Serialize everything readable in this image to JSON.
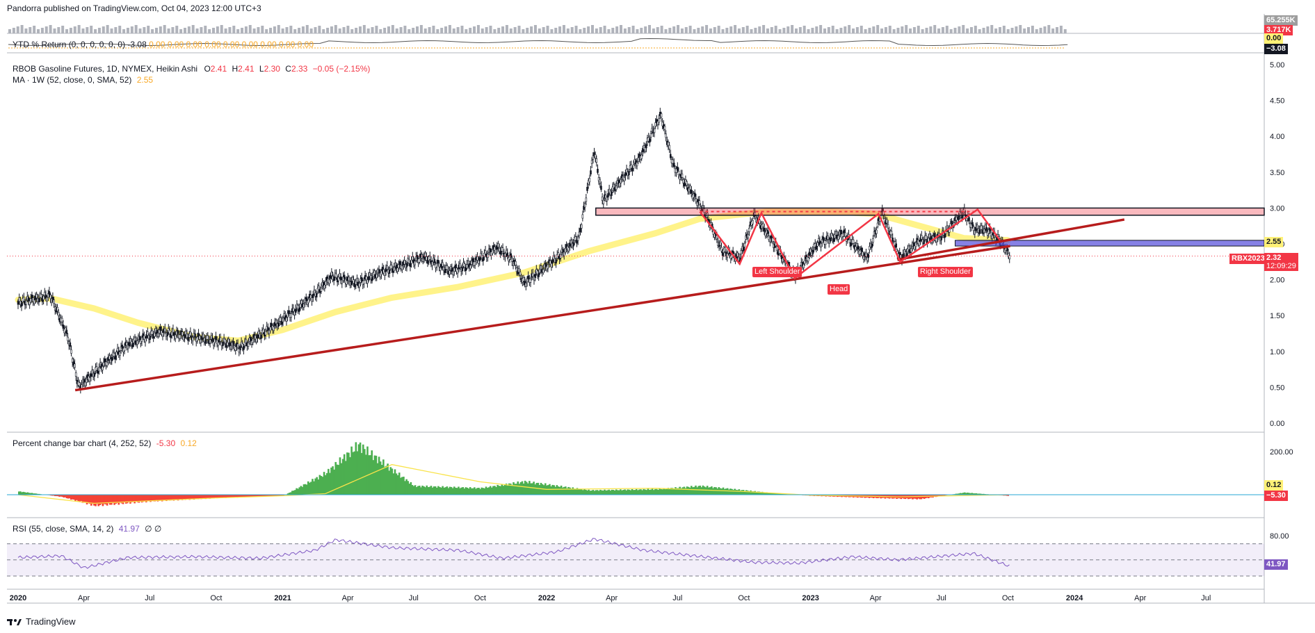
{
  "header": {
    "publisher": "Pandorra published on TradingView.com, Oct 04, 2023 12:00 UTC+3"
  },
  "footer": {
    "brand": "TradingView"
  },
  "volume_pane": {
    "top_value": "65.255K",
    "value": "3.717K"
  },
  "ytd_pane": {
    "label": "YTD % Return (0, 0, 0, 0, 0, 0)",
    "value": "-3.08",
    "zeros": "0.00  0.00  0.00  0.00  0.00  0.00  0.00  0.00  0.00",
    "badge_zero": "0.00",
    "badge_value": "−3.08"
  },
  "main_legend": {
    "symbol": "RBOB Gasoline Futures, 1D, NYMEX, Heikin Ashi",
    "o_label": "O",
    "o": "2.41",
    "h_label": "H",
    "h": "2.41",
    "l_label": "L",
    "l": "2.30",
    "c_label": "C",
    "c": "2.33",
    "change": "−0.05 (−2.15%)",
    "ma_label": "MA · 1W (52, close, 0, SMA, 52)",
    "ma_value": "2.55"
  },
  "price_badges": {
    "ma": "2.55",
    "symbol": "RBX2023",
    "last": "2.32",
    "countdown": "12:09:29"
  },
  "annotations": {
    "left_shoulder": "Left Shoulder",
    "head": "Head",
    "right_shoulder": "Right Shoulder"
  },
  "pct_pane": {
    "label": "Percent change bar chart (4, 252, 52)",
    "v1": "-5.30",
    "v2": "0.12",
    "badge_pos": "0.12",
    "badge_neg": "−5.30"
  },
  "rsi_pane": {
    "label": "RSI (55, close, SMA, 14, 2)",
    "value": "41.97",
    "extra": "∅  ∅",
    "badge": "41.97"
  },
  "colors": {
    "up": "#26a69a",
    "candle": "#131722",
    "ma": "#fff176",
    "trend": "#b71c1c",
    "pattern": "#f23645",
    "green": "#4caf50",
    "red": "#f44336",
    "rsi": "#7e57c2"
  },
  "chart_data": [
    {
      "type": "line",
      "title": "RBOB Gasoline Futures, 1D, NYMEX, Heikin Ashi",
      "ylim": [
        0,
        5.2
      ],
      "y_ticks": [
        "5.00",
        "4.50",
        "4.00",
        "3.50",
        "3.00",
        "2.50",
        "2.00",
        "1.50",
        "1.00",
        "0.50",
        "0.00"
      ],
      "x_ticks": [
        "2020",
        "Apr",
        "Jul",
        "Oct",
        "2021",
        "Apr",
        "Jul",
        "Oct",
        "2022",
        "Apr",
        "Jul",
        "Oct",
        "2023",
        "Apr",
        "Jul",
        "Oct",
        "2024",
        "Apr",
        "Jul"
      ],
      "x_year_ticks": [
        "2020",
        "2021",
        "2022",
        "2023",
        "2024"
      ],
      "series": [
        {
          "name": "RBOB Gasoline Futures",
          "x": [
            "2020-01-01",
            "2020-02-15",
            "2020-03-10",
            "2020-03-25",
            "2020-04-20",
            "2020-06-01",
            "2020-07-15",
            "2020-09-01",
            "2020-10-15",
            "2020-11-02",
            "2020-12-15",
            "2021-01-15",
            "2021-02-15",
            "2021-03-10",
            "2021-04-15",
            "2021-05-15",
            "2021-06-15",
            "2021-07-15",
            "2021-08-20",
            "2021-09-15",
            "2021-10-25",
            "2021-11-15",
            "2021-12-01",
            "2022-01-15",
            "2022-02-15",
            "2022-03-08",
            "2022-03-20",
            "2022-04-15",
            "2022-05-10",
            "2022-06-08",
            "2022-06-25",
            "2022-07-15",
            "2022-08-10",
            "2022-09-01",
            "2022-09-25",
            "2022-10-15",
            "2022-11-05",
            "2022-12-10",
            "2023-01-10",
            "2023-02-15",
            "2023-03-20",
            "2023-04-10",
            "2023-05-05",
            "2023-06-01",
            "2023-07-01",
            "2023-08-01",
            "2023-08-15",
            "2023-09-01",
            "2023-09-20",
            "2023-10-04"
          ],
          "values": [
            1.68,
            1.78,
            1.2,
            0.5,
            0.75,
            1.1,
            1.28,
            1.2,
            1.12,
            1.05,
            1.32,
            1.55,
            1.8,
            2.05,
            1.95,
            2.1,
            2.2,
            2.32,
            2.12,
            2.2,
            2.45,
            2.28,
            1.95,
            2.3,
            2.6,
            3.8,
            3.1,
            3.4,
            3.7,
            4.3,
            3.6,
            3.3,
            2.9,
            2.4,
            2.3,
            2.9,
            2.6,
            2.05,
            2.5,
            2.65,
            2.3,
            2.95,
            2.3,
            2.55,
            2.6,
            2.95,
            2.7,
            2.7,
            2.55,
            2.33
          ]
        },
        {
          "name": "MA · 1W (52, close, 0, SMA, 52)",
          "x": [
            "2020-01-01",
            "2020-02-15",
            "2020-04-15",
            "2020-06-15",
            "2020-09-01",
            "2020-11-01",
            "2021-01-01",
            "2021-03-15",
            "2021-06-01",
            "2021-09-01",
            "2021-12-01",
            "2022-03-01",
            "2022-06-01",
            "2022-08-01",
            "2022-11-01",
            "2023-02-01",
            "2023-04-01",
            "2023-06-01",
            "2023-08-01",
            "2023-10-01"
          ],
          "values": [
            1.72,
            1.74,
            1.6,
            1.4,
            1.2,
            1.15,
            1.3,
            1.55,
            1.75,
            1.9,
            2.1,
            2.4,
            2.65,
            2.85,
            2.95,
            2.95,
            2.92,
            2.75,
            2.58,
            2.55
          ]
        }
      ]
    },
    {
      "type": "area",
      "title": "Percent change bar chart (4, 252, 52)",
      "y_ticks": [
        "200.00"
      ],
      "series": [
        {
          "name": "Percent change",
          "x": [
            "2020-01-01",
            "2020-03-01",
            "2020-04-15",
            "2020-07-01",
            "2020-10-01",
            "2021-01-01",
            "2021-03-01",
            "2021-04-15",
            "2021-07-01",
            "2021-10-01",
            "2021-12-01",
            "2022-03-01",
            "2022-06-01",
            "2022-08-01",
            "2022-11-01",
            "2023-01-01",
            "2023-04-01",
            "2023-06-01",
            "2023-08-01",
            "2023-10-01"
          ],
          "values": [
            15,
            -10,
            -50,
            -30,
            -15,
            -5,
            100,
            230,
            40,
            30,
            60,
            20,
            25,
            40,
            10,
            -5,
            -15,
            -20,
            10,
            -5.3
          ]
        },
        {
          "name": "signal",
          "x": [
            "2020-01-01",
            "2020-04-15",
            "2020-10-01",
            "2021-01-01",
            "2021-03-01",
            "2021-06-01",
            "2021-10-01",
            "2022-01-01",
            "2022-06-01",
            "2022-10-01",
            "2023-01-01",
            "2023-05-01",
            "2023-10-01"
          ],
          "values": [
            0,
            -40,
            -15,
            -5,
            5,
            140,
            60,
            25,
            30,
            15,
            -2,
            -10,
            0.12
          ]
        }
      ]
    },
    {
      "type": "line",
      "title": "RSI (55, close, SMA, 14, 2)",
      "y_ticks": [
        "80.00"
      ],
      "series": [
        {
          "name": "RSI",
          "x": [
            "2020-01-01",
            "2020-03-01",
            "2020-04-01",
            "2020-06-01",
            "2020-09-01",
            "2020-12-01",
            "2021-02-15",
            "2021-03-15",
            "2021-06-01",
            "2021-09-01",
            "2021-11-01",
            "2022-01-15",
            "2022-03-08",
            "2022-05-15",
            "2022-07-15",
            "2022-10-15",
            "2022-12-15",
            "2023-03-01",
            "2023-05-01",
            "2023-08-15",
            "2023-10-04"
          ],
          "values": [
            53,
            55,
            40,
            53,
            54,
            52,
            62,
            75,
            65,
            62,
            52,
            60,
            76,
            62,
            56,
            47,
            46,
            54,
            50,
            58,
            41.97
          ]
        }
      ]
    }
  ]
}
